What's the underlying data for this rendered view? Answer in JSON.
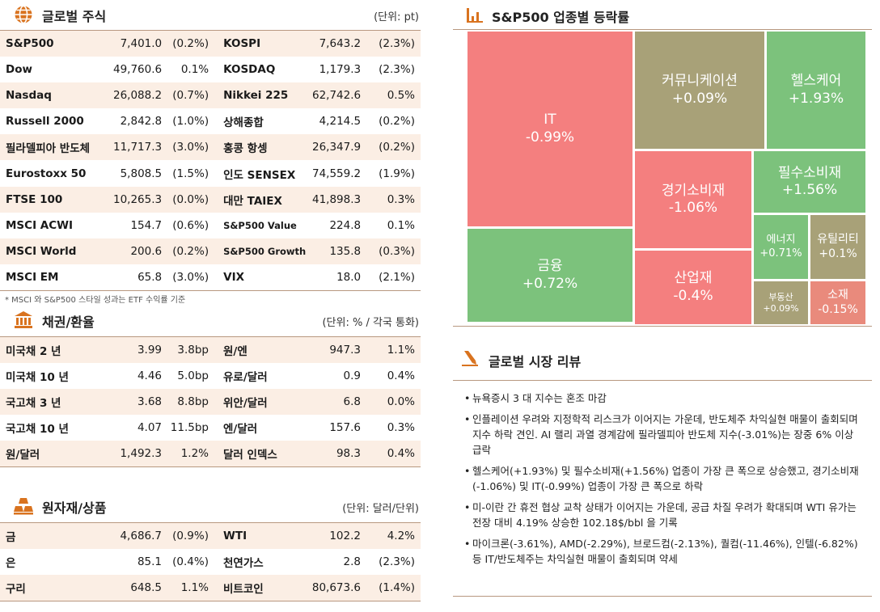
{
  "global_equity": {
    "title": "글로벌 주식",
    "unit": "(단위: pt)",
    "rows": [
      {
        "n1": "S&P500",
        "v1": "7,401.0",
        "c1": "(0.2%)",
        "n2": "KOSPI",
        "v2": "7,643.2",
        "c2": "(2.3%)"
      },
      {
        "n1": "Dow",
        "v1": "49,760.6",
        "c1": "0.1%",
        "n2": "KOSDAQ",
        "v2": "1,179.3",
        "c2": "(2.3%)"
      },
      {
        "n1": "Nasdaq",
        "v1": "26,088.2",
        "c1": "(0.7%)",
        "n2": "Nikkei 225",
        "v2": "62,742.6",
        "c2": "0.5%"
      },
      {
        "n1": "Russell 2000",
        "v1": "2,842.8",
        "c1": "(1.0%)",
        "n2": "상해종합",
        "v2": "4,214.5",
        "c2": "(0.2%)"
      },
      {
        "n1": "필라델피아 반도체",
        "v1": "11,717.3",
        "c1": "(3.0%)",
        "n2": "홍콩 항셍",
        "v2": "26,347.9",
        "c2": "(0.2%)"
      },
      {
        "n1": "Eurostoxx 50",
        "v1": "5,808.5",
        "c1": "(1.5%)",
        "n2": "인도 SENSEX",
        "v2": "74,559.2",
        "c2": "(1.9%)"
      },
      {
        "n1": "FTSE 100",
        "v1": "10,265.3",
        "c1": "(0.0%)",
        "n2": "대만 TAIEX",
        "v2": "41,898.3",
        "c2": "0.3%"
      },
      {
        "n1": "MSCI ACWI",
        "v1": "154.7",
        "c1": "(0.6%)",
        "n2": "S&P500 Value",
        "v2": "224.8",
        "c2": "0.1%"
      },
      {
        "n1": "MSCI World",
        "v1": "200.6",
        "c1": "(0.2%)",
        "n2": "S&P500 Growth",
        "v2": "135.8",
        "c2": "(0.3%)"
      },
      {
        "n1": "MSCI EM",
        "v1": "65.8",
        "c1": "(3.0%)",
        "n2": "VIX",
        "v2": "18.0",
        "c2": "(2.1%)"
      }
    ],
    "footnote": "* MSCI 와 S&P500 스타일 성과는 ETF 수익률 기준"
  },
  "bonds_fx": {
    "title": "채권/환율",
    "unit": "(단위: % / 각국 통화)",
    "rows": [
      {
        "n1": "미국채 2 년",
        "v1": "3.99",
        "c1": "3.8bp",
        "n2": "원/엔",
        "v2": "947.3",
        "c2": "1.1%"
      },
      {
        "n1": "미국채 10 년",
        "v1": "4.46",
        "c1": "5.0bp",
        "n2": "유로/달러",
        "v2": "0.9",
        "c2": "0.4%"
      },
      {
        "n1": "국고채 3 년",
        "v1": "3.68",
        "c1": "8.8bp",
        "n2": "위안/달러",
        "v2": "6.8",
        "c2": "0.0%"
      },
      {
        "n1": "국고채 10 년",
        "v1": "4.07",
        "c1": "11.5bp",
        "n2": "엔/달러",
        "v2": "157.6",
        "c2": "0.3%"
      },
      {
        "n1": "원/달러",
        "v1": "1,492.3",
        "c1": "1.2%",
        "n2": "달러 인덱스",
        "v2": "98.3",
        "c2": "0.4%"
      }
    ]
  },
  "commodities": {
    "title": "원자재/상품",
    "unit": "(단위: 달러/단위)",
    "rows": [
      {
        "n1": "금",
        "v1": "4,686.7",
        "c1": "(0.9%)",
        "n2": "WTI",
        "v2": "102.2",
        "c2": "4.2%"
      },
      {
        "n1": "은",
        "v1": "85.1",
        "c1": "(0.4%)",
        "n2": "천연가스",
        "v2": "2.8",
        "c2": "(2.3%)"
      },
      {
        "n1": "구리",
        "v1": "648.5",
        "c1": "1.1%",
        "n2": "비트코인",
        "v2": "80,673.6",
        "c2": "(1.4%)"
      }
    ]
  },
  "sector_map": {
    "title": "S&P500 업종별 등락률",
    "tiles": [
      {
        "name": "IT",
        "pct": "-0.99%"
      },
      {
        "name": "금융",
        "pct": "+0.72%"
      },
      {
        "name": "커뮤니케이션",
        "pct": "+0.09%"
      },
      {
        "name": "헬스케어",
        "pct": "+1.93%"
      },
      {
        "name": "경기소비재",
        "pct": "-1.06%"
      },
      {
        "name": "필수소비재",
        "pct": "+1.56%"
      },
      {
        "name": "산업재",
        "pct": "-0.4%"
      },
      {
        "name": "에너지",
        "pct": "+0.71%"
      },
      {
        "name": "유틸리티",
        "pct": "+0.1%"
      },
      {
        "name": "부동산",
        "pct": "+0.09%"
      },
      {
        "name": "소재",
        "pct": "-0.15%"
      }
    ],
    "colors": {
      "negative": "#f47f7f",
      "positive": "#7cc27c",
      "neutral": "#a8a178",
      "mild_negative": "#e98a7c"
    }
  },
  "review": {
    "title": "글로벌 시장 리뷰",
    "items": [
      "뉴욕증시 3 대 지수는 혼조 마감",
      "인플레이션 우려와 지정학적 리스크가 이어지는 가운데, 반도체주 차익실현 매물이 출회되며 지수 하락 견인. AI 랠리 과열 경계감에 필라델피아 반도체 지수(-3.01%)는 장중 6% 이상 급락",
      "헬스케어(+1.93%) 및 필수소비재(+1.56%) 업종이 가장 큰 폭으로 상승했고, 경기소비재(-1.06%) 및 IT(-0.99%) 업종이 가장 큰 폭으로 하락",
      "미-이란 간 휴전 협상 교착 상태가 이어지는 가운데, 공급 차질 우려가 확대되며 WTI 유가는 전장 대비 4.19% 상승한 102.18$/bbl 을 기록",
      "마이크론(-3.61%), AMD(-2.29%), 브로드컴(-2.13%), 퀄컴(-11.46%), 인텔(-6.82%) 등 IT/반도체주는 차익실현 매물이 출회되며 약세"
    ]
  },
  "accent_color": "#d9731f"
}
